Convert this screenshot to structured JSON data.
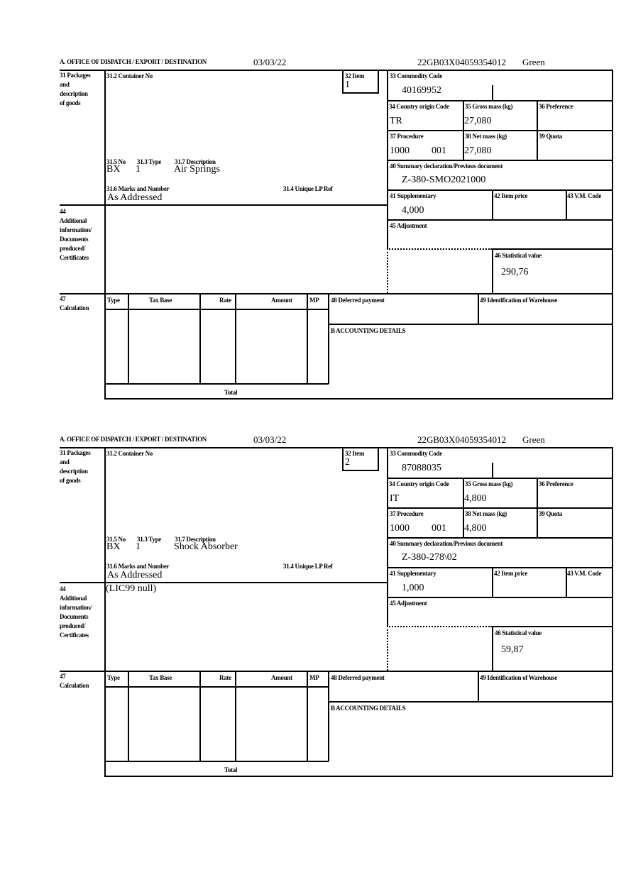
{
  "labels": {
    "office": "A.  OFFICE OF DISPATCH / EXPORT / DESTINATION",
    "packages": [
      "31 Packages",
      "and",
      "description",
      "of goods"
    ],
    "container_no": "31.2 Container No",
    "item": "32 Item",
    "commodity_code": "33 Commodity Code",
    "country_origin": "34 Country origin Code",
    "gross_mass": "35 Gross mass (kg)",
    "preference": "36 Preference",
    "procedure": "37 Procedure",
    "net_mass": "38 Net mass (kg)",
    "quota": "39 Quota",
    "summary_declaration": "40 Summary declaration/Previous document",
    "supplementary": "41 Supplementary",
    "item_price": "42 Item price",
    "vm_code": "43 V.M. Code",
    "adjustment": "45 Adjustment",
    "statistical_value": "46 Statistical value",
    "no": "31.5 No",
    "type": "31.3 Type",
    "description": "31.7 Description",
    "marks": "31.6 Marks and Number",
    "unique_lp_ref": "31.4 Unique LP Ref",
    "additional_info": [
      "44",
      "Additional",
      "information/",
      "Documents",
      "produced/",
      "Certificates"
    ],
    "calculation": [
      "47",
      "Calculation"
    ],
    "calc_columns": [
      "Type",
      "Tax Base",
      "Rate",
      "Amount",
      "MP"
    ],
    "total": "Total",
    "deferred_payment": "48 Deferred payment",
    "warehouse": "49 Identification of Warehouse",
    "accounting": "B ACCOUNTING DETAILS"
  },
  "forms": [
    {
      "date": "03/03/22",
      "reference": "22GB03X04059354012",
      "route": "Green",
      "item": "1",
      "commodity_code": "40169952",
      "country_origin": "TR",
      "gross_mass": "27,080",
      "procedure": "1000",
      "procedure_ext": "001",
      "net_mass": "27,080",
      "summary_declaration": "Z-380-SMO2021000",
      "supplementary": "4,000",
      "statistical_value": "290,76",
      "package_kind": "BX",
      "package_count": "1",
      "description": "Air Springs",
      "marks": "As Addressed",
      "additional_info": ""
    },
    {
      "date": "03/03/22",
      "reference": "22GB03X04059354012",
      "route": "Green",
      "item": "2",
      "commodity_code": "87088035",
      "country_origin": "IT",
      "gross_mass": "4,800",
      "procedure": "1000",
      "procedure_ext": "001",
      "net_mass": "4,800",
      "summary_declaration": "Z-380-278\\02",
      "supplementary": "1,000",
      "statistical_value": "59,87",
      "package_kind": "BX",
      "package_count": "1",
      "description": "Shock Absorber",
      "marks": "As Addressed",
      "additional_info": "(LIC99 null)"
    }
  ]
}
